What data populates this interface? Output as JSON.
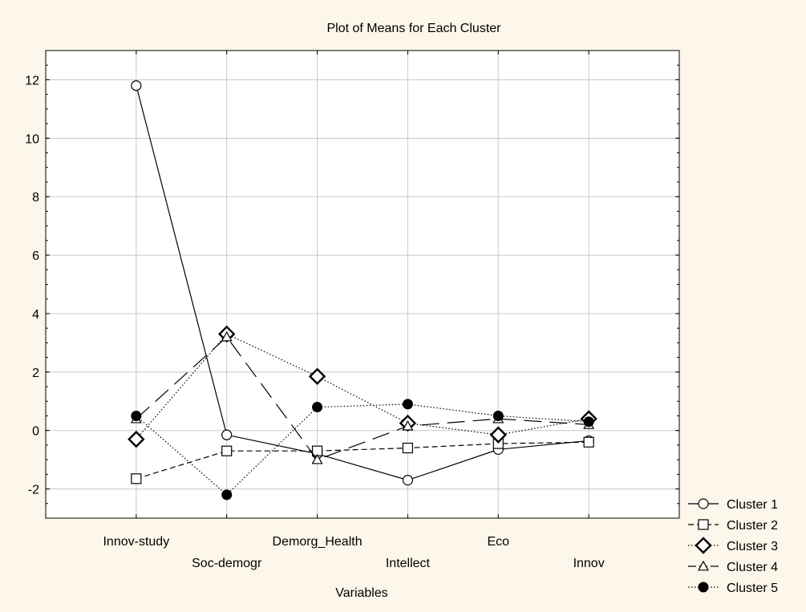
{
  "chart_data": {
    "type": "line",
    "title": "Plot of Means for Each Cluster",
    "xlabel": "Variables",
    "ylabel": "",
    "categories": [
      "Innov-study",
      "Soc-demogr",
      "Demorg_Health",
      "Intellect",
      "Eco",
      "Innov"
    ],
    "ylim": [
      -3,
      13
    ],
    "yticks": [
      -2,
      0,
      2,
      4,
      6,
      8,
      10,
      12
    ],
    "grid": true,
    "legend_position": "bottom-right",
    "series": [
      {
        "name": "Cluster 1",
        "marker": "circle-open",
        "dash": "solid",
        "values": [
          11.8,
          -0.15,
          -0.8,
          -1.7,
          -0.65,
          -0.35
        ]
      },
      {
        "name": "Cluster 2",
        "marker": "square-open",
        "dash": "dashed",
        "values": [
          -1.65,
          -0.7,
          -0.7,
          -0.6,
          -0.45,
          -0.4
        ]
      },
      {
        "name": "Cluster 3",
        "marker": "diamond-open",
        "dash": "dotted",
        "values": [
          -0.3,
          3.3,
          1.85,
          0.25,
          -0.15,
          0.4
        ]
      },
      {
        "name": "Cluster 4",
        "marker": "triangle-open",
        "dash": "longdash",
        "values": [
          0.4,
          3.2,
          -1.0,
          0.15,
          0.4,
          0.2
        ]
      },
      {
        "name": "Cluster 5",
        "marker": "circle-filled",
        "dash": "dotted",
        "values": [
          0.5,
          -2.2,
          0.8,
          0.9,
          0.5,
          0.3
        ]
      }
    ]
  }
}
